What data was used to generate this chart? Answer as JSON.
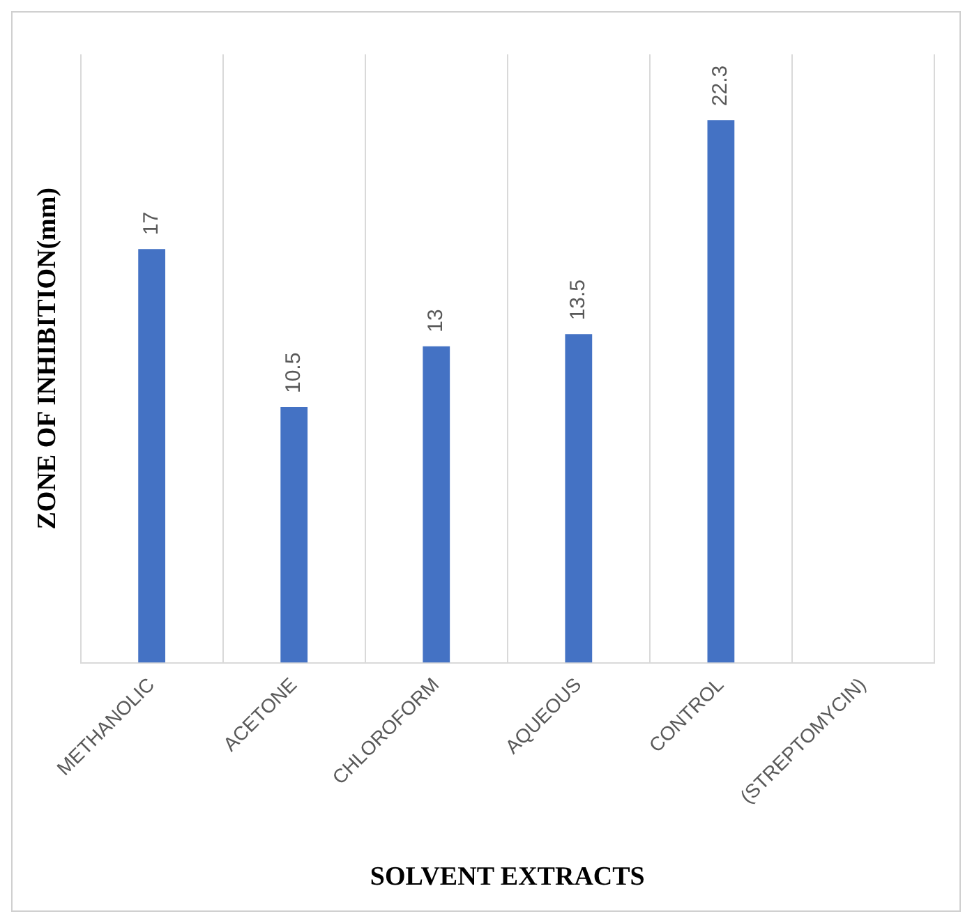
{
  "chart_data": {
    "type": "bar",
    "xlabel": "SOLVENT EXTRACTS",
    "ylabel": "ZONE OF INHIBITION(mm)",
    "categories": [
      "METHANOLIC",
      "ACETONE",
      "CHLOROFORM",
      "AQUEOUS",
      "CONTROL",
      "(STREPTOMYCIN)"
    ],
    "values": [
      17,
      10.5,
      13,
      13.5,
      22.3,
      null
    ],
    "color": "#4472c4",
    "ylim": [
      0,
      25
    ],
    "tick_labels": "x",
    "grid": "x",
    "data_labels": true,
    "legend": false
  }
}
